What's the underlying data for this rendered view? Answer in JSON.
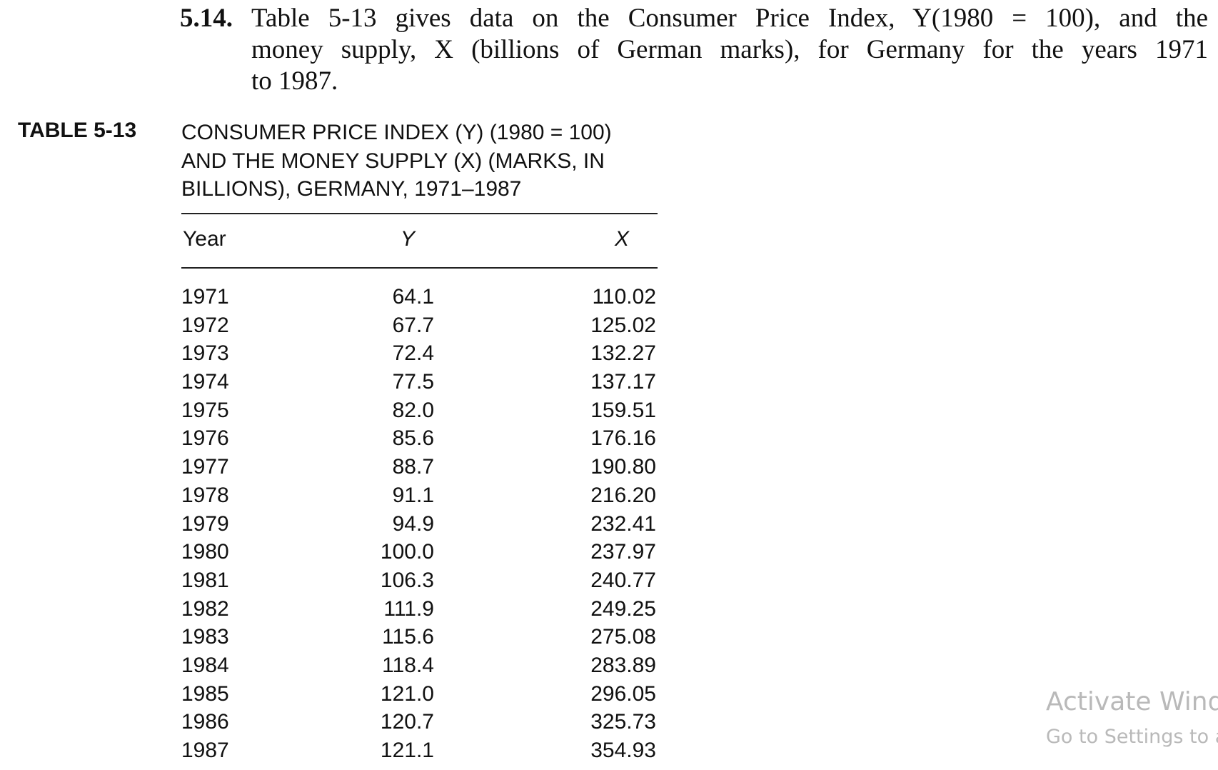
{
  "problem": {
    "number": "5.14.",
    "lines": [
      "Table 5-13 gives data on the Consumer Price Index, Y(1980 = 100), and the",
      "money supply, X (billions of German marks), for Germany for the years 1971",
      "to 1987."
    ]
  },
  "table": {
    "label": "TABLE 5-13",
    "caption_lines": [
      "CONSUMER PRICE INDEX (Y) (1980 = 100)",
      "AND THE MONEY SUPPLY (X) (MARKS, IN",
      "BILLIONS), GERMANY, 1971–1987"
    ],
    "headers": {
      "year": "Year",
      "y": "Y",
      "x": "X"
    },
    "rows": [
      {
        "year": "1971",
        "y": "64.1",
        "x": "110.02"
      },
      {
        "year": "1972",
        "y": "67.7",
        "x": "125.02"
      },
      {
        "year": "1973",
        "y": "72.4",
        "x": "132.27"
      },
      {
        "year": "1974",
        "y": "77.5",
        "x": "137.17"
      },
      {
        "year": "1975",
        "y": "82.0",
        "x": "159.51"
      },
      {
        "year": "1976",
        "y": "85.6",
        "x": "176.16"
      },
      {
        "year": "1977",
        "y": "88.7",
        "x": "190.80"
      },
      {
        "year": "1978",
        "y": "91.1",
        "x": "216.20"
      },
      {
        "year": "1979",
        "y": "94.9",
        "x": "232.41"
      },
      {
        "year": "1980",
        "y": "100.0",
        "x": "237.97"
      },
      {
        "year": "1981",
        "y": "106.3",
        "x": "240.77"
      },
      {
        "year": "1982",
        "y": "111.9",
        "x": "249.25"
      },
      {
        "year": "1983",
        "y": "115.6",
        "x": "275.08"
      },
      {
        "year": "1984",
        "y": "118.4",
        "x": "283.89"
      },
      {
        "year": "1985",
        "y": "121.0",
        "x": "296.05"
      },
      {
        "year": "1986",
        "y": "120.7",
        "x": "325.73"
      },
      {
        "year": "1987",
        "y": "121.1",
        "x": "354.93"
      }
    ]
  },
  "watermark": {
    "title": "Activate Wind",
    "subtitle": "Go to Settings to a"
  }
}
